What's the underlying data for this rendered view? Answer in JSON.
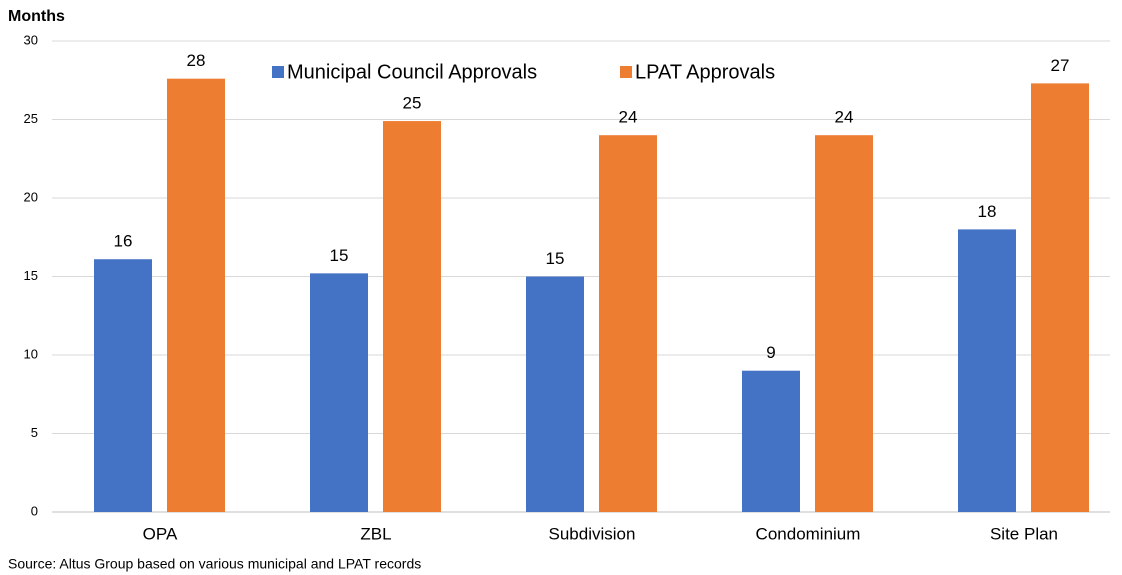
{
  "chart_data": {
    "type": "bar",
    "title": "Months",
    "categories": [
      "OPA",
      "ZBL",
      "Subdivision",
      "Condominium",
      "Site Plan"
    ],
    "series": [
      {
        "name": "Municipal Council Approvals",
        "color": "#4472c4",
        "values": [
          16.1,
          15.2,
          15.0,
          9.0,
          18.0
        ],
        "value_labels": [
          "16",
          "15",
          "15",
          "9",
          "18"
        ]
      },
      {
        "name": "LPAT Approvals",
        "color": "#ed7d31",
        "values": [
          27.6,
          24.9,
          24.0,
          24.0,
          27.3
        ],
        "value_labels": [
          "28",
          "25",
          "24",
          "24",
          "27"
        ]
      }
    ],
    "ylim": [
      0,
      30
    ],
    "yticks": [
      0,
      5,
      10,
      15,
      20,
      25,
      30
    ],
    "grid": true,
    "legend": "top",
    "source": "Source: Altus Group based on various municipal and LPAT records"
  }
}
